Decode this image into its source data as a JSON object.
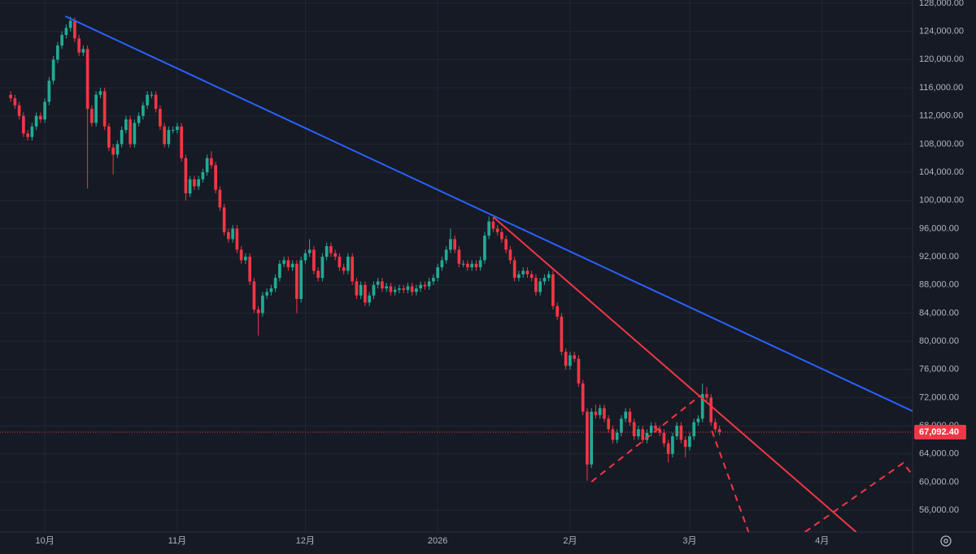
{
  "chart_data": {
    "type": "candlestick",
    "up_color": "#22ab94",
    "down_color": "#f23645",
    "grid": true,
    "xlim": [
      -10.5,
      203.2
    ],
    "ylim": [
      52900,
      128460
    ],
    "xticks": [
      {
        "value": 0,
        "label": "10月"
      },
      {
        "value": 31,
        "label": "11月"
      },
      {
        "value": 61,
        "label": "12月"
      },
      {
        "value": 92,
        "label": "2026"
      },
      {
        "value": 123,
        "label": "2月"
      },
      {
        "value": 151,
        "label": "3月"
      },
      {
        "value": 182,
        "label": "4月"
      }
    ],
    "yticks": [
      {
        "value": 56000,
        "label": "56,000.00"
      },
      {
        "value": 60000,
        "label": "60,000.00"
      },
      {
        "value": 64000,
        "label": "64,000.00"
      },
      {
        "value": 68000,
        "label": "68,000.00"
      },
      {
        "value": 72000,
        "label": "72,000.00"
      },
      {
        "value": 76000,
        "label": "76,000.00"
      },
      {
        "value": 80000,
        "label": "80,000.00"
      },
      {
        "value": 84000,
        "label": "84,000.00"
      },
      {
        "value": 88000,
        "label": "88,000.00"
      },
      {
        "value": 92000,
        "label": "92,000.00"
      },
      {
        "value": 96000,
        "label": "96,000.00"
      },
      {
        "value": 100000,
        "label": "100,000.00"
      },
      {
        "value": 104000,
        "label": "104,000.00"
      },
      {
        "value": 108000,
        "label": "108,000.00"
      },
      {
        "value": 112000,
        "label": "112,000.00"
      },
      {
        "value": 116000,
        "label": "116,000.00"
      },
      {
        "value": 120000,
        "label": "120,000.00"
      },
      {
        "value": 124000,
        "label": "124,000.00"
      },
      {
        "value": 128000,
        "label": "128,000.00"
      }
    ],
    "last_price": {
      "value": 67092.4,
      "label": "67,092.40",
      "color": "#f23645"
    },
    "x": [
      -8,
      -7,
      -6,
      -5,
      -4,
      -3,
      -2,
      -1,
      0,
      1,
      2,
      3,
      4,
      5,
      6,
      7,
      8,
      9,
      10,
      11,
      12,
      13,
      14,
      15,
      16,
      17,
      18,
      19,
      20,
      21,
      22,
      23,
      24,
      25,
      26,
      27,
      28,
      29,
      30,
      31,
      32,
      33,
      34,
      35,
      36,
      37,
      38,
      39,
      40,
      41,
      42,
      43,
      44,
      45,
      46,
      47,
      48,
      49,
      50,
      51,
      52,
      53,
      54,
      55,
      56,
      57,
      58,
      59,
      60,
      61,
      62,
      63,
      64,
      65,
      66,
      67,
      68,
      69,
      70,
      71,
      72,
      73,
      74,
      75,
      76,
      77,
      78,
      79,
      80,
      81,
      82,
      83,
      84,
      85,
      86,
      87,
      88,
      89,
      90,
      91,
      92,
      93,
      94,
      95,
      96,
      97,
      98,
      99,
      100,
      101,
      102,
      103,
      104,
      105,
      106,
      107,
      108,
      109,
      110,
      111,
      112,
      113,
      114,
      115,
      116,
      117,
      118,
      119,
      120,
      121,
      122,
      123,
      124,
      125,
      126,
      127,
      128,
      129,
      130,
      131,
      132,
      133,
      134,
      135,
      136,
      137,
      138,
      139,
      140,
      141,
      142,
      143,
      144,
      145,
      146,
      147,
      148,
      149,
      150,
      151,
      152,
      153,
      154,
      155,
      156,
      157,
      158
    ],
    "open": [
      115000,
      114500,
      113500,
      112000,
      109500,
      109000,
      110500,
      112000,
      111500,
      114000,
      117000,
      120000,
      122000,
      123500,
      124500,
      125500,
      123000,
      121000,
      121500,
      113000,
      111000,
      115000,
      115500,
      110500,
      107500,
      106500,
      108000,
      110000,
      111500,
      108000,
      111000,
      112000,
      113500,
      115000,
      115000,
      113000,
      110500,
      108000,
      110000,
      110000,
      110500,
      106000,
      101000,
      103000,
      102000,
      103000,
      104000,
      106000,
      105000,
      101500,
      99000,
      95500,
      94500,
      96000,
      93000,
      91500,
      92000,
      88500,
      84500,
      84000,
      86500,
      87000,
      87500,
      89000,
      91000,
      91500,
      90500,
      91000,
      86000,
      91500,
      92500,
      93000,
      90000,
      89000,
      92000,
      93500,
      92500,
      92000,
      90500,
      90000,
      92000,
      88500,
      86500,
      88000,
      85500,
      86500,
      88000,
      88500,
      87500,
      87800,
      87000,
      87300,
      87500,
      87300,
      87800,
      87000,
      87500,
      88000,
      87800,
      88500,
      89000,
      90500,
      91500,
      93000,
      94500,
      93000,
      91000,
      91000,
      90500,
      91000,
      90500,
      91500,
      95000,
      97000,
      96000,
      95500,
      94500,
      93000,
      91500,
      89000,
      89500,
      90000,
      89500,
      89000,
      87000,
      88500,
      89000,
      89500,
      85000,
      83500,
      78500,
      76500,
      78000,
      77500,
      74000,
      70000,
      62500,
      70000,
      69500,
      70500,
      69000,
      67500,
      66000,
      67000,
      69000,
      70000,
      68500,
      66500,
      67500,
      66000,
      67000,
      68000,
      67500,
      67000,
      65500,
      64000,
      66500,
      68000,
      66000,
      65000,
      66500,
      68500,
      69000,
      72500,
      72000,
      68500,
      67500
    ],
    "high": [
      115500,
      115000,
      114000,
      112500,
      110000,
      111000,
      112500,
      112500,
      114500,
      117500,
      120500,
      122500,
      124000,
      125000,
      126100,
      126000,
      123500,
      122000,
      122000,
      113500,
      115500,
      116000,
      116000,
      111000,
      108000,
      108500,
      110500,
      112000,
      112000,
      111500,
      112500,
      114000,
      115500,
      115500,
      115500,
      113500,
      111000,
      110500,
      110500,
      111000,
      111000,
      106500,
      103500,
      103500,
      103500,
      104500,
      106500,
      107000,
      105500,
      102000,
      99500,
      96000,
      96500,
      96500,
      93500,
      92500,
      92500,
      89000,
      85000,
      87000,
      87500,
      88000,
      89500,
      91500,
      92000,
      92000,
      91500,
      91500,
      92000,
      93000,
      94500,
      93500,
      90500,
      92500,
      94000,
      94000,
      93000,
      92500,
      91000,
      92500,
      92500,
      89000,
      88500,
      88500,
      87000,
      88500,
      89000,
      89000,
      88300,
      88300,
      87800,
      88000,
      88000,
      88300,
      88300,
      88000,
      88500,
      88500,
      89000,
      89500,
      91000,
      92000,
      93500,
      96000,
      95000,
      93500,
      91500,
      91500,
      91500,
      91500,
      92000,
      95500,
      97700,
      97500,
      96500,
      96000,
      95000,
      93500,
      92000,
      90000,
      90500,
      90500,
      90000,
      89500,
      89000,
      89500,
      90000,
      90000,
      85500,
      84000,
      79000,
      78500,
      78500,
      78000,
      74500,
      70500,
      70500,
      71000,
      71000,
      71000,
      69500,
      68000,
      67500,
      69500,
      70500,
      70500,
      69000,
      68000,
      68000,
      67500,
      68500,
      68500,
      68000,
      67500,
      66000,
      67000,
      68500,
      68500,
      66500,
      67000,
      69000,
      69500,
      74000,
      73500,
      72500,
      69000,
      68000
    ],
    "low": [
      114000,
      113000,
      111500,
      109000,
      108500,
      108500,
      110000,
      111000,
      111000,
      113500,
      116500,
      119500,
      121500,
      123000,
      124000,
      122500,
      120500,
      120500,
      101700,
      110500,
      110500,
      114500,
      110000,
      107000,
      103700,
      106000,
      107500,
      109500,
      107500,
      107500,
      110500,
      111500,
      113000,
      114500,
      112500,
      110000,
      107500,
      107500,
      109500,
      109500,
      105500,
      100000,
      100500,
      101500,
      101500,
      102500,
      103500,
      104500,
      101000,
      98500,
      95000,
      94000,
      94000,
      92500,
      91000,
      91000,
      88000,
      84000,
      80800,
      83500,
      86000,
      86500,
      87000,
      88500,
      90500,
      90000,
      90000,
      84000,
      85500,
      91000,
      92000,
      89500,
      88500,
      88500,
      91500,
      92000,
      91500,
      90000,
      89500,
      89500,
      88000,
      86000,
      86000,
      85000,
      85000,
      86000,
      87500,
      87000,
      87000,
      86500,
      86500,
      86800,
      86800,
      86800,
      86500,
      86500,
      87000,
      87300,
      87300,
      88000,
      88500,
      90000,
      91000,
      92500,
      92500,
      90500,
      90500,
      90000,
      90000,
      90000,
      90000,
      91000,
      94500,
      95500,
      95000,
      94000,
      92500,
      91000,
      88500,
      88500,
      89000,
      89000,
      88500,
      86500,
      86500,
      88000,
      88500,
      84500,
      83000,
      78000,
      76000,
      76000,
      77000,
      73500,
      69500,
      60200,
      62000,
      69000,
      69000,
      68500,
      67000,
      65500,
      65500,
      66500,
      68500,
      68000,
      66000,
      66000,
      65500,
      65500,
      66500,
      67000,
      66500,
      65000,
      62800,
      63500,
      66000,
      65500,
      63500,
      64500,
      66000,
      68000,
      68500,
      71500,
      68000,
      67000,
      66600
    ],
    "close": [
      114500,
      113500,
      112000,
      109500,
      109000,
      110500,
      112000,
      111500,
      114000,
      117000,
      120000,
      122000,
      123500,
      124500,
      125500,
      123000,
      121000,
      121500,
      113000,
      111000,
      115000,
      115500,
      110500,
      107500,
      106500,
      108000,
      110000,
      111500,
      108000,
      111000,
      112000,
      113500,
      115000,
      115000,
      113000,
      110500,
      108000,
      110000,
      110000,
      110500,
      106000,
      101000,
      103000,
      102000,
      103000,
      104000,
      106000,
      105000,
      101500,
      99000,
      95500,
      94500,
      96000,
      93000,
      91500,
      92000,
      88500,
      84500,
      84000,
      86500,
      87000,
      87500,
      89000,
      91000,
      91500,
      90500,
      91000,
      86000,
      91500,
      92500,
      93000,
      90000,
      89000,
      92000,
      93500,
      92500,
      92000,
      90500,
      90000,
      92000,
      88500,
      86500,
      88000,
      85500,
      86500,
      88000,
      88500,
      87500,
      87800,
      87000,
      87300,
      87500,
      87300,
      87800,
      87000,
      87500,
      88000,
      87800,
      88500,
      89000,
      90500,
      91500,
      93000,
      94500,
      93000,
      91000,
      91000,
      90500,
      91000,
      90500,
      91500,
      95000,
      97000,
      96000,
      95500,
      94500,
      93000,
      91500,
      89000,
      89500,
      90000,
      89500,
      89000,
      87000,
      88500,
      89000,
      89500,
      85000,
      83500,
      78500,
      76500,
      78000,
      77500,
      74000,
      70000,
      62500,
      70000,
      69500,
      70500,
      69000,
      67500,
      66000,
      67000,
      69000,
      70000,
      68500,
      66500,
      67500,
      66000,
      67000,
      68000,
      67500,
      67000,
      65500,
      64000,
      66500,
      68000,
      66000,
      65000,
      66500,
      68500,
      69000,
      72500,
      72000,
      68500,
      67500,
      67100
    ],
    "drawings": [
      {
        "color": "#2962ff",
        "dashed": false,
        "x": [
          4.8,
          203.2
        ],
        "y": [
          126150,
          70080
        ]
      },
      {
        "color": "#f23645",
        "dashed": false,
        "x": [
          105,
          190
        ],
        "y": [
          97650,
          52900
        ]
      },
      {
        "color": "#f23645",
        "dashed": true,
        "x": [
          128,
          153.5
        ],
        "y": [
          60040,
          72300
        ]
      },
      {
        "color": "#f23645",
        "dashed": true,
        "x": [
          156.2,
          164.8
        ],
        "y": [
          67300,
          52900
        ]
      },
      {
        "color": "#f23645",
        "dashed": true,
        "x": [
          178,
          201,
          203.2
        ],
        "y": [
          52900,
          62700,
          61000
        ]
      }
    ]
  }
}
